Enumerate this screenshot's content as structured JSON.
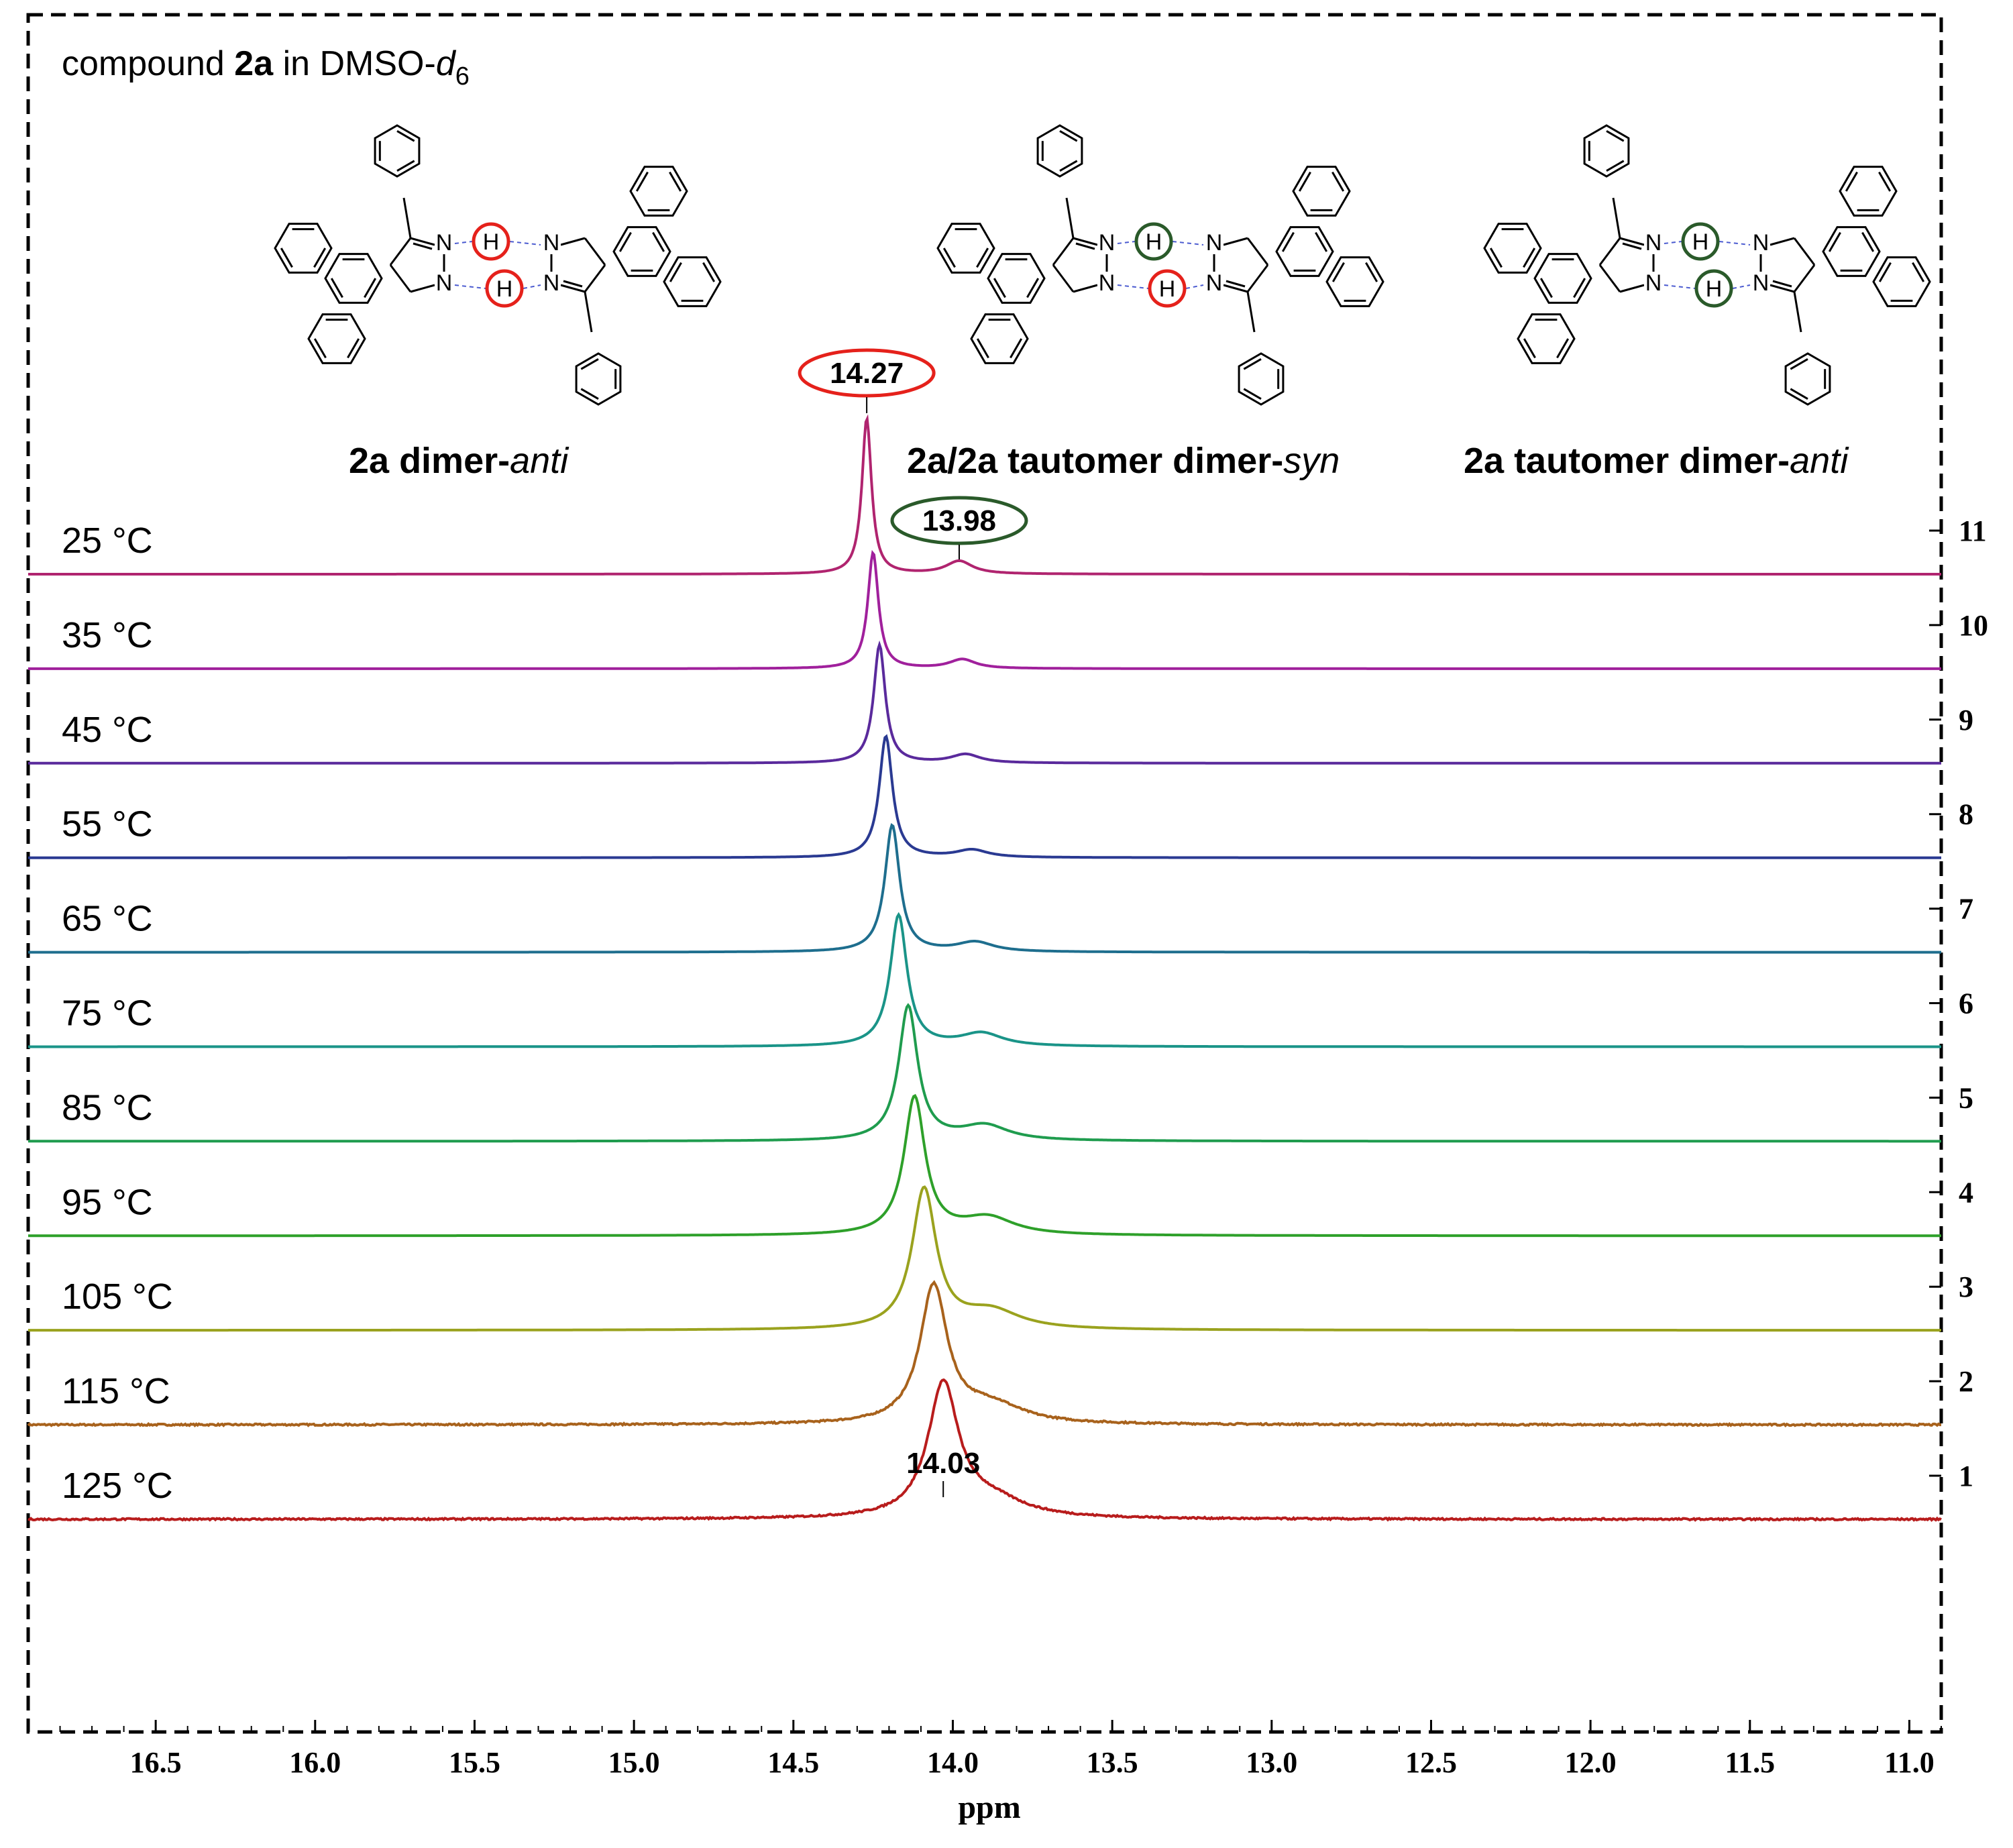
{
  "chart_data": {
    "type": "line",
    "title": {
      "prefix": "compound ",
      "compound": "2a",
      "middle": " in DMSO-",
      "solvent_italic": "d",
      "subscript": "6"
    },
    "xlabel": "ppm",
    "xlim": [
      16.9,
      10.9
    ],
    "x_ticks": [
      "16.5",
      "16.0",
      "15.5",
      "15.0",
      "14.5",
      "14.0",
      "13.5",
      "13.0",
      "12.5",
      "12.0",
      "11.5",
      "11.0"
    ],
    "x_tick_values": [
      16.5,
      16.0,
      15.5,
      15.0,
      14.5,
      14.0,
      13.5,
      13.0,
      12.5,
      12.0,
      11.5,
      11.0
    ],
    "y_right_ticks": [
      "1",
      "2",
      "3",
      "4",
      "5",
      "6",
      "7",
      "8",
      "9",
      "10",
      "11"
    ],
    "series": [
      {
        "name": "25 °C",
        "index": 11,
        "color": "#b0246f",
        "main_peak": 14.27,
        "main_height": 1.45,
        "main_width": 0.018,
        "minor_peak": 13.98,
        "minor_height": 0.12,
        "minor_width": 0.05,
        "noise": 0.0
      },
      {
        "name": "35 °C",
        "index": 10,
        "color": "#a0209c",
        "main_peak": 14.25,
        "main_height": 1.08,
        "main_width": 0.02,
        "minor_peak": 13.97,
        "minor_height": 0.085,
        "minor_width": 0.05,
        "noise": 0.0
      },
      {
        "name": "45 °C",
        "index": 9,
        "color": "#5a2a9c",
        "main_peak": 14.23,
        "main_height": 1.1,
        "main_width": 0.022,
        "minor_peak": 13.96,
        "minor_height": 0.08,
        "minor_width": 0.055,
        "noise": 0.0
      },
      {
        "name": "55 °C",
        "index": 8,
        "color": "#2a3a92",
        "main_peak": 14.21,
        "main_height": 1.13,
        "main_width": 0.025,
        "minor_peak": 13.94,
        "minor_height": 0.07,
        "minor_width": 0.06,
        "noise": 0.0
      },
      {
        "name": "65 °C",
        "index": 7,
        "color": "#1e6e8e",
        "main_peak": 14.19,
        "main_height": 1.18,
        "main_width": 0.028,
        "minor_peak": 13.93,
        "minor_height": 0.09,
        "minor_width": 0.07,
        "noise": 0.0
      },
      {
        "name": "75 °C",
        "index": 6,
        "color": "#1a9488",
        "main_peak": 14.17,
        "main_height": 1.22,
        "main_width": 0.032,
        "minor_peak": 13.91,
        "minor_height": 0.12,
        "minor_width": 0.08,
        "noise": 0.0
      },
      {
        "name": "85 °C",
        "index": 5,
        "color": "#1f9c4e",
        "main_peak": 14.14,
        "main_height": 1.25,
        "main_width": 0.036,
        "minor_peak": 13.9,
        "minor_height": 0.14,
        "minor_width": 0.09,
        "noise": 0.0
      },
      {
        "name": "95 °C",
        "index": 4,
        "color": "#2ea02a",
        "main_peak": 14.12,
        "main_height": 1.28,
        "main_width": 0.04,
        "minor_peak": 13.89,
        "minor_height": 0.16,
        "minor_width": 0.1,
        "noise": 0.0
      },
      {
        "name": "105 °C",
        "index": 3,
        "color": "#9aa21e",
        "main_peak": 14.09,
        "main_height": 1.3,
        "main_width": 0.046,
        "minor_peak": 13.88,
        "minor_height": 0.17,
        "minor_width": 0.11,
        "noise": 0.0
      },
      {
        "name": "115 °C",
        "index": 2,
        "color": "#a8621c",
        "main_peak": 14.06,
        "main_height": 1.27,
        "main_width": 0.052,
        "minor_peak": 13.88,
        "minor_height": 0.17,
        "minor_width": 0.12,
        "noise": 0.015
      },
      {
        "name": "125 °C",
        "index": 1,
        "color": "#b81c1c",
        "main_peak": 14.03,
        "main_height": 1.23,
        "main_width": 0.058,
        "minor_peak": 13.88,
        "minor_height": 0.16,
        "minor_width": 0.13,
        "noise": 0.015
      }
    ],
    "annotations": {
      "peak_1427": {
        "text": "14.27",
        "ppm": 14.27,
        "color": "#e5211b"
      },
      "peak_1398": {
        "text": "13.98",
        "ppm": 13.98,
        "color": "#2a5a2a"
      },
      "peak_1403": {
        "text": "14.03",
        "ppm": 14.03
      }
    },
    "structures": [
      {
        "label_bold": "2a dimer-",
        "label_italic": "anti"
      },
      {
        "label_bold": "2a/2a tautomer dimer-",
        "label_italic": "syn"
      },
      {
        "label_bold": "2a tautomer dimer-",
        "label_italic": "anti"
      }
    ],
    "atom_labels": {
      "nitrogen": "N",
      "hydrogen": "H"
    },
    "hbond_colors": {
      "red": "#e5211b",
      "green": "#2a5a2a",
      "hbond_dash": "#4a5ad0"
    }
  }
}
